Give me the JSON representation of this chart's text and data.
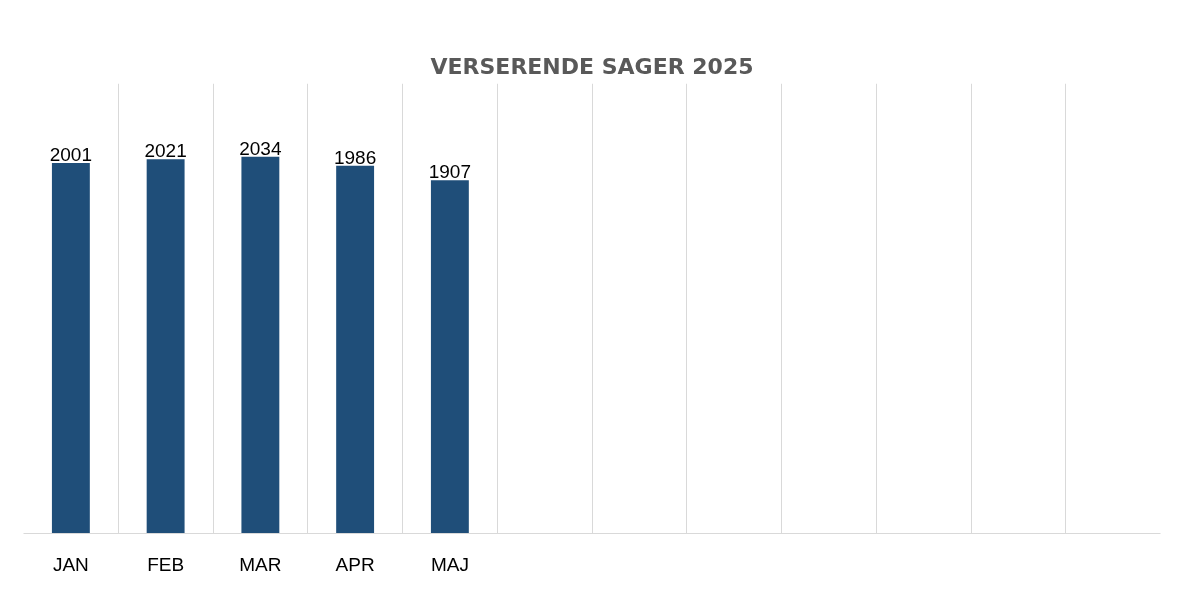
{
  "chart_data": {
    "type": "bar",
    "title": "VERSERENDE SAGER 2025",
    "categories": [
      "JAN",
      "FEB",
      "MAR",
      "APR",
      "MAJ",
      null,
      null,
      null,
      null,
      null,
      null,
      null
    ],
    "values": [
      2001,
      2021,
      2034,
      1986,
      1907,
      null,
      null,
      null,
      null,
      null,
      null,
      null
    ],
    "color": "#1f4e79",
    "ylim": [
      0,
      2430
    ],
    "data_labels": true,
    "grid": "x",
    "tick_labels": "x"
  }
}
